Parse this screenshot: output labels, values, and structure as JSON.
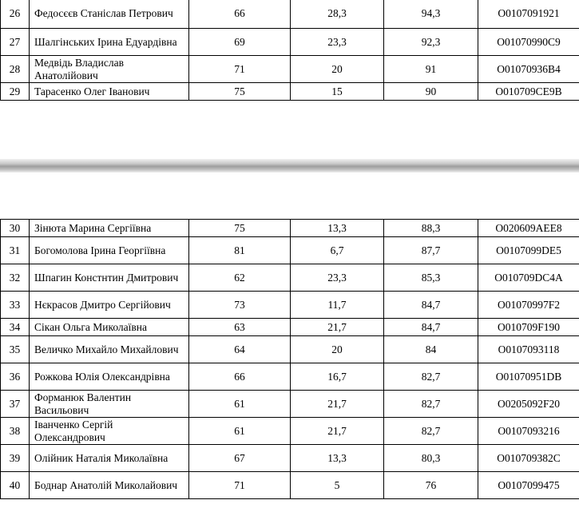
{
  "top_rows": [
    {
      "no": "26",
      "name": "Федосєєв Станіслав Петрович",
      "c1": "66",
      "c2": "28,3",
      "c3": "94,3",
      "code": "O0107091921"
    },
    {
      "no": "27",
      "name": "Шалгінських Ірина Едуардівна",
      "c1": "69",
      "c2": "23,3",
      "c3": "92,3",
      "code": "O01070990C9"
    },
    {
      "no": "28",
      "name": "Медвідь Владислав Анатолійович",
      "c1": "71",
      "c2": "20",
      "c3": "91",
      "code": "O01070936B4"
    },
    {
      "no": "29",
      "name": "Тарасенко Олег Іванович",
      "c1": "75",
      "c2": "15",
      "c3": "90",
      "code": "O010709CE9B"
    }
  ],
  "bottom_rows": [
    {
      "no": "30",
      "name": "Зінюта Марина Сергіївна",
      "c1": "75",
      "c2": "13,3",
      "c3": "88,3",
      "code": "O020609AEE8"
    },
    {
      "no": "31",
      "name": "Богомолова Ірина Георгіївна",
      "c1": "81",
      "c2": "6,7",
      "c3": "87,7",
      "code": "O0107099DE5"
    },
    {
      "no": "32",
      "name": "Шпагин Констнтин Дмитрович",
      "c1": "62",
      "c2": "23,3",
      "c3": "85,3",
      "code": "O010709DC4A"
    },
    {
      "no": "33",
      "name": "Нєкрасов Дмитро Сергійович",
      "c1": "73",
      "c2": "11,7",
      "c3": "84,7",
      "code": "O01070997F2"
    },
    {
      "no": "34",
      "name": "Сікан Ольга Миколаївна",
      "c1": "63",
      "c2": "21,7",
      "c3": "84,7",
      "code": "O010709F190"
    },
    {
      "no": "35",
      "name": "Величко Михайло Михайлович",
      "c1": "64",
      "c2": "20",
      "c3": "84",
      "code": "O0107093118"
    },
    {
      "no": "36",
      "name": "Рожкова Юлія Олександрівна",
      "c1": "66",
      "c2": "16,7",
      "c3": "82,7",
      "code": "O01070951DB"
    },
    {
      "no": "37",
      "name": "Форманюк Валентин Васильович",
      "c1": "61",
      "c2": "21,7",
      "c3": "82,7",
      "code": "O0205092F20"
    },
    {
      "no": "38",
      "name": "Іванченко Сергій Олександрович",
      "c1": "61",
      "c2": "21,7",
      "c3": "82,7",
      "code": "O0107093216"
    },
    {
      "no": "39",
      "name": "Олійник Наталія Миколаївна",
      "c1": "67",
      "c2": "13,3",
      "c3": "80,3",
      "code": "O010709382C"
    },
    {
      "no": "40",
      "name": "Боднар Анатолій Миколайович",
      "c1": "71",
      "c2": "5",
      "c3": "76",
      "code": "O0107099475"
    }
  ]
}
